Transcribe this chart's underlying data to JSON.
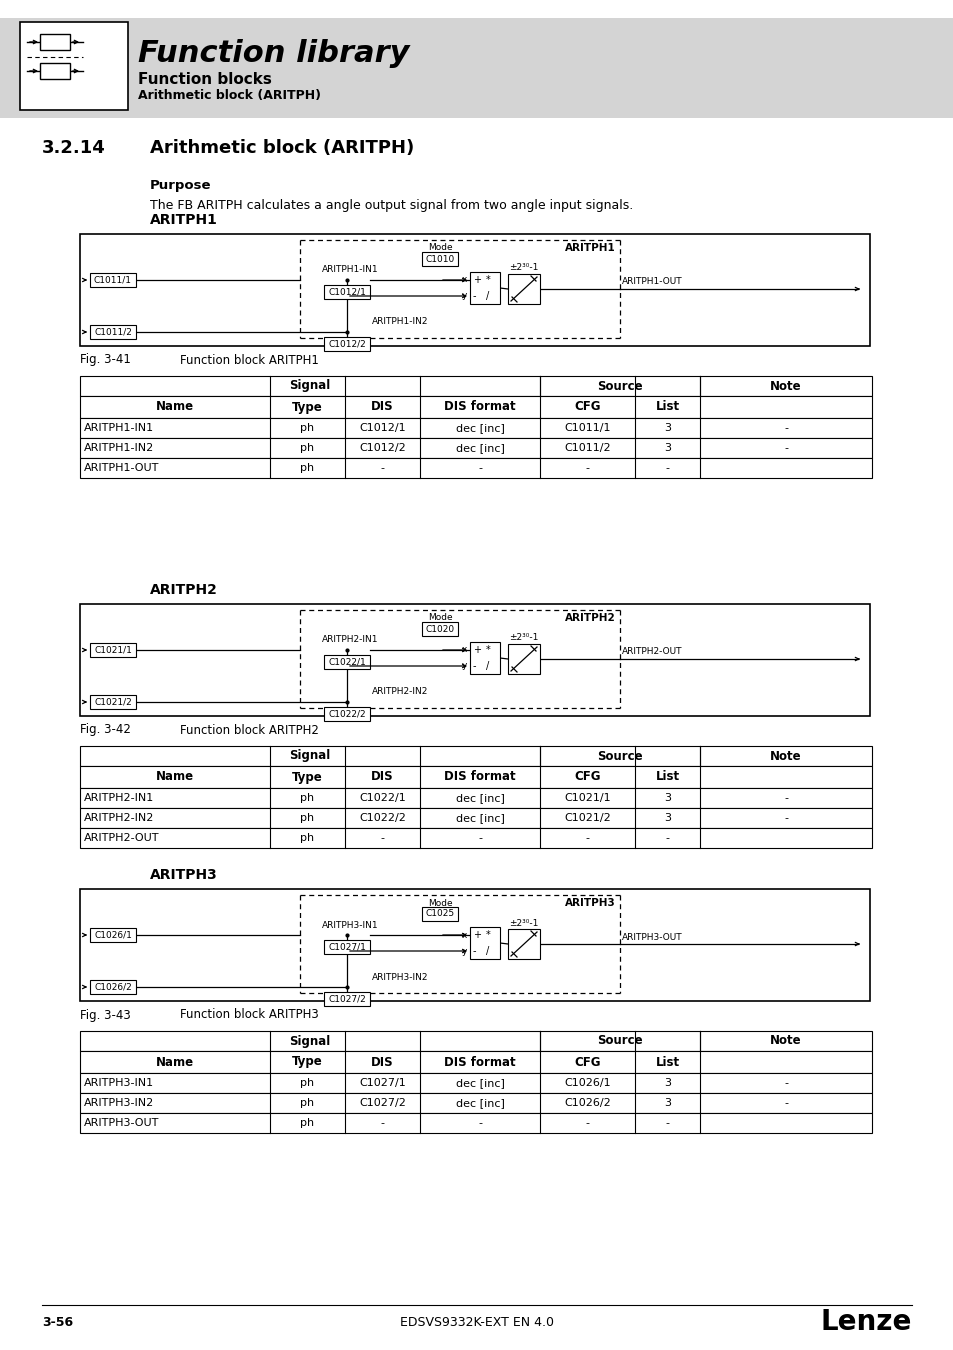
{
  "page_bg": "#ffffff",
  "header_bg": "#d4d4d4",
  "header_title": "Function library",
  "header_sub1": "Function blocks",
  "header_sub2": "Arithmetic block (ARITPH)",
  "section_num": "3.2.14",
  "section_title": "Arithmetic block (ARITPH)",
  "purpose_label": "Purpose",
  "purpose_text": "The FB ARITPH calculates a angle output signal from two angle input signals.",
  "blocks": [
    {
      "name": "ARITPH1",
      "fig_label": "Fig. 3-41",
      "fig_caption": "Function block ARITPH1",
      "c_mode": "C1010",
      "c_in1_src": "C1011/1",
      "c_in1_dis": "C1012/1",
      "c_in2_src": "C1011/2",
      "c_in2_dis": "C1012/2",
      "label_in1": "ARITPH1-IN1",
      "label_in2": "ARITPH1-IN2",
      "label_out": "ARITPH1-OUT",
      "block_label": "ARITPH1",
      "rows": [
        [
          "ARITPH1-IN1",
          "ph",
          "C1012/1",
          "dec [inc]",
          "C1011/1",
          "3",
          "-"
        ],
        [
          "ARITPH1-IN2",
          "ph",
          "C1012/2",
          "dec [inc]",
          "C1011/2",
          "3",
          "-"
        ],
        [
          "ARITPH1-OUT",
          "ph",
          "-",
          "-",
          "-",
          "-",
          ""
        ]
      ]
    },
    {
      "name": "ARITPH2",
      "fig_label": "Fig. 3-42",
      "fig_caption": "Function block ARITPH2",
      "c_mode": "C1020",
      "c_in1_src": "C1021/1",
      "c_in1_dis": "C1022/1",
      "c_in2_src": "C1021/2",
      "c_in2_dis": "C1022/2",
      "label_in1": "ARITPH2-IN1",
      "label_in2": "ARITPH2-IN2",
      "label_out": "ARITPH2-OUT",
      "block_label": "ARITPH2",
      "rows": [
        [
          "ARITPH2-IN1",
          "ph",
          "C1022/1",
          "dec [inc]",
          "C1021/1",
          "3",
          "-"
        ],
        [
          "ARITPH2-IN2",
          "ph",
          "C1022/2",
          "dec [inc]",
          "C1021/2",
          "3",
          "-"
        ],
        [
          "ARITPH2-OUT",
          "ph",
          "-",
          "-",
          "-",
          "-",
          ""
        ]
      ]
    },
    {
      "name": "ARITPH3",
      "fig_label": "Fig. 3-43",
      "fig_caption": "Function block ARITPH3",
      "c_mode": "C1025",
      "c_in1_src": "C1026/1",
      "c_in1_dis": "C1027/1",
      "c_in2_src": "C1026/2",
      "c_in2_dis": "C1027/2",
      "label_in1": "ARITPH3-IN1",
      "label_in2": "ARITPH3-IN2",
      "label_out": "ARITPH3-OUT",
      "block_label": "ARITPH3",
      "rows": [
        [
          "ARITPH3-IN1",
          "ph",
          "C1027/1",
          "dec [inc]",
          "C1026/1",
          "3",
          "-"
        ],
        [
          "ARITPH3-IN2",
          "ph",
          "C1027/2",
          "dec [inc]",
          "C1026/2",
          "3",
          "-"
        ],
        [
          "ARITPH3-OUT",
          "ph",
          "-",
          "-",
          "-",
          "-",
          ""
        ]
      ]
    }
  ],
  "footer_left": "3-56",
  "footer_center": "EDSVS9332K-EXT EN 4.0",
  "footer_right": "Lenze"
}
